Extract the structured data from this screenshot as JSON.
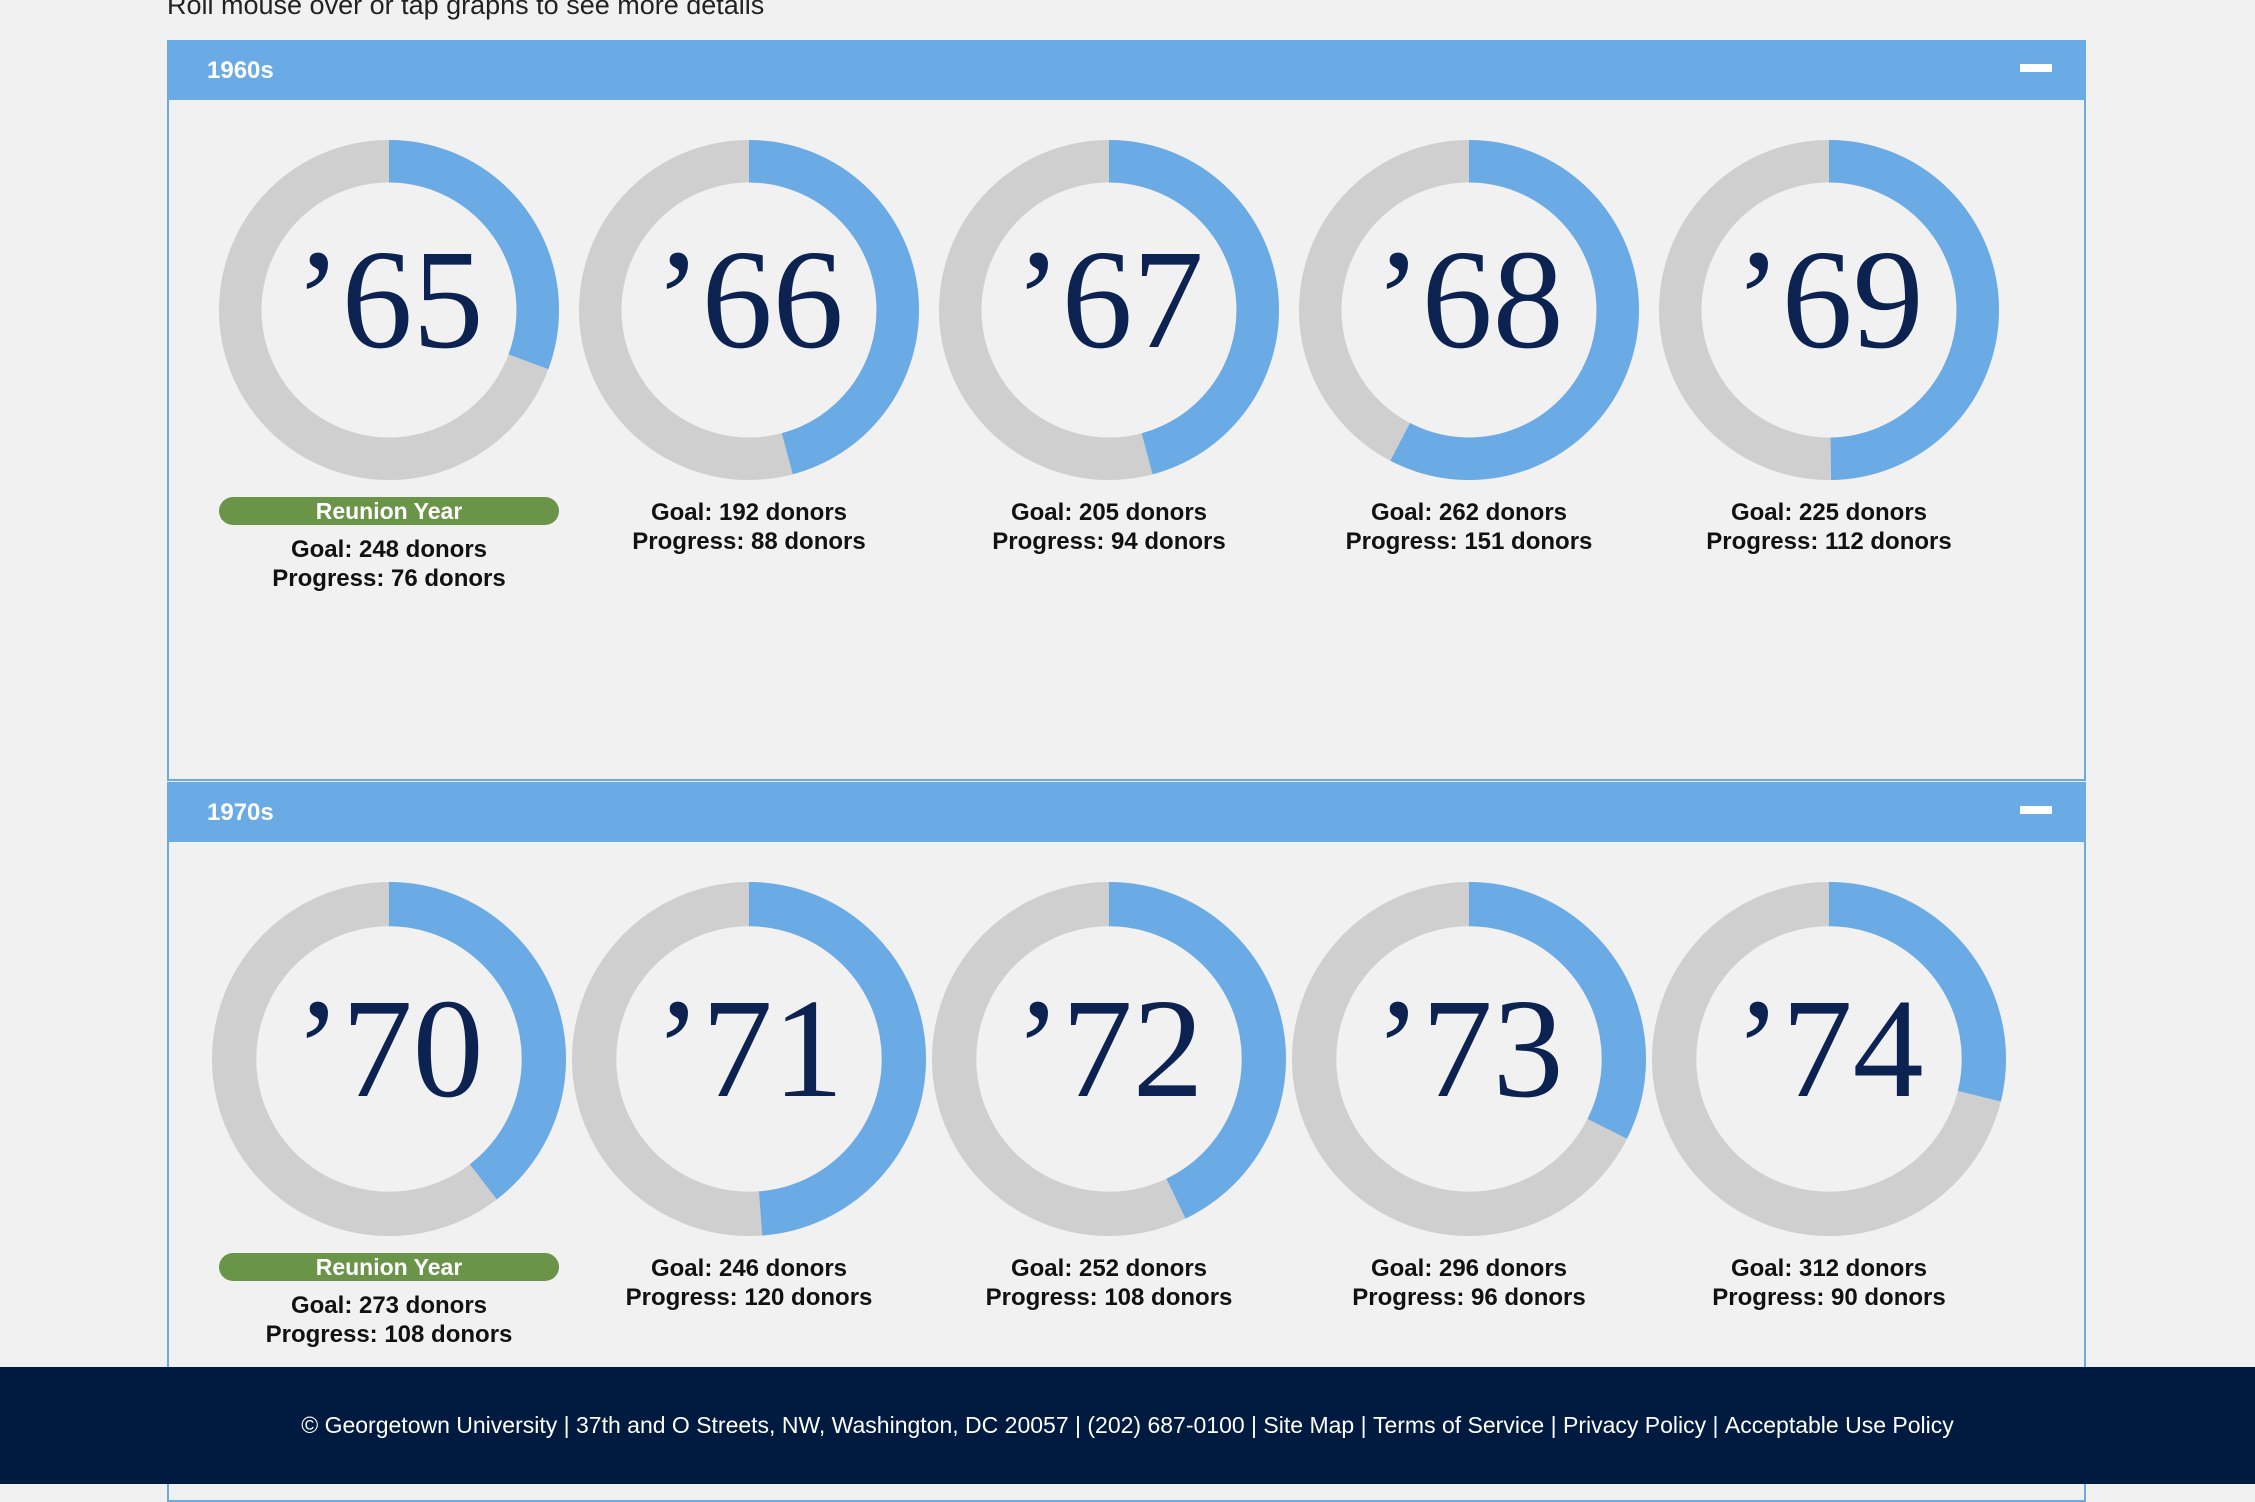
{
  "instructions": "Roll mouse over or tap graphs to see more details",
  "decades": [
    {
      "title": "1960s",
      "classes": [
        {
          "year": "’65",
          "goal": "Goal: 248 donors",
          "progress": "Progress: 76 donors",
          "reunion": "Reunion Year",
          "fraction": 0.3065
        },
        {
          "year": "’66",
          "goal": "Goal: 192 donors",
          "progress": "Progress: 88 donors",
          "reunion": "",
          "fraction": 0.4583
        },
        {
          "year": "’67",
          "goal": "Goal: 205 donors",
          "progress": "Progress: 94 donors",
          "reunion": "",
          "fraction": 0.4585
        },
        {
          "year": "’68",
          "goal": "Goal: 262 donors",
          "progress": "Progress: 151 donors",
          "reunion": "",
          "fraction": 0.5763
        },
        {
          "year": "’69",
          "goal": "Goal: 225 donors",
          "progress": "Progress: 112 donors",
          "reunion": "",
          "fraction": 0.4978
        }
      ]
    },
    {
      "title": "1970s",
      "classes": [
        {
          "year": "’70",
          "goal": "Goal: 273 donors",
          "progress": "Progress: 108 donors",
          "reunion": "Reunion Year",
          "fraction": 0.3956
        },
        {
          "year": "’71",
          "goal": "Goal: 246 donors",
          "progress": "Progress: 120 donors",
          "reunion": "",
          "fraction": 0.4878
        },
        {
          "year": "’72",
          "goal": "Goal: 252 donors",
          "progress": "Progress: 108 donors",
          "reunion": "",
          "fraction": 0.4286
        },
        {
          "year": "’73",
          "goal": "Goal: 296 donors",
          "progress": "Progress: 96 donors",
          "reunion": "",
          "fraction": 0.3243
        },
        {
          "year": "’74",
          "goal": "Goal: 312 donors",
          "progress": "Progress: 90 donors",
          "reunion": "",
          "fraction": 0.2885
        }
      ]
    }
  ],
  "colors": {
    "progress": "#6aabe6",
    "track": "#cfcfcf",
    "reunion": "#6a9447",
    "navy": "#0c2250"
  },
  "footer": {
    "address": "© Georgetown University | 37th and O Streets, NW, Washington, DC 20057 | (202) 687-0100",
    "sep": " | ",
    "links": [
      "Site Map",
      "Terms of Service",
      "Privacy Policy",
      "Acceptable Use Policy"
    ]
  }
}
